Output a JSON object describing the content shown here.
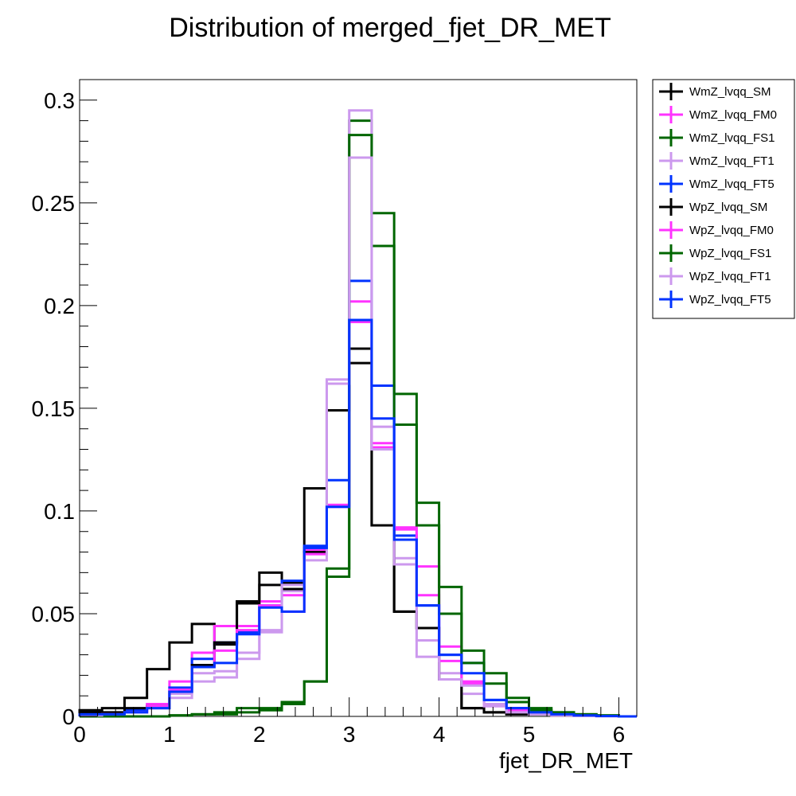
{
  "chart_data": {
    "type": "line",
    "title": "Distribution of merged_fjet_DR_MET",
    "xlabel": "fjet_DR_MET",
    "ylabel": "",
    "xlim": [
      0,
      6.2
    ],
    "ylim": [
      0,
      0.31
    ],
    "x_ticks": [
      0,
      1,
      2,
      3,
      4,
      5,
      6
    ],
    "x_tick_labels": [
      "0",
      "1",
      "2",
      "3",
      "4",
      "5",
      "6"
    ],
    "y_ticks": [
      0,
      0.05,
      0.1,
      0.15,
      0.2,
      0.25,
      0.3
    ],
    "y_tick_labels": [
      "0",
      "0.05",
      "0.1",
      "0.15",
      "0.2",
      "0.25",
      "0.3"
    ],
    "bin_edges": [
      0,
      0.25,
      0.5,
      0.75,
      1.0,
      1.25,
      1.5,
      1.75,
      2.0,
      2.25,
      2.5,
      2.75,
      3.0,
      3.25,
      3.5,
      3.75,
      4.0,
      4.25,
      4.5,
      4.75,
      5.0,
      5.25,
      5.5,
      5.75,
      6.0,
      6.2
    ],
    "legend_position": "top-right, outside plot",
    "series": [
      {
        "name": "WmZ_lvqq_SM",
        "color": "#000000",
        "values": [
          0.003,
          0.004,
          0.009,
          0.023,
          0.036,
          0.045,
          0.035,
          0.056,
          0.07,
          0.065,
          0.111,
          0.149,
          0.179,
          0.093,
          0.051,
          0.043,
          0.018,
          0.004,
          0.002,
          0.001,
          0.001,
          0.0005,
          0.0003,
          0.0002,
          0.0
        ]
      },
      {
        "name": "WmZ_lvqq_FM0",
        "color": "#ff33ff",
        "values": [
          0.001,
          0.001,
          0.002,
          0.006,
          0.017,
          0.031,
          0.044,
          0.044,
          0.056,
          0.059,
          0.081,
          0.103,
          0.202,
          0.133,
          0.091,
          0.073,
          0.034,
          0.017,
          0.006,
          0.004,
          0.002,
          0.001,
          0.0005,
          0.0002,
          0.0
        ]
      },
      {
        "name": "WmZ_lvqq_FS1",
        "color": "#006600",
        "values": [
          0.0,
          0.0,
          0.0,
          0.0,
          0.0005,
          0.001,
          0.002,
          0.004,
          0.004,
          0.007,
          0.017,
          0.072,
          0.29,
          0.245,
          0.157,
          0.104,
          0.063,
          0.032,
          0.021,
          0.009,
          0.004,
          0.002,
          0.001,
          0.0005,
          0.0
        ]
      },
      {
        "name": "WmZ_lvqq_FT1",
        "color": "#cc99ee",
        "values": [
          0.0005,
          0.001,
          0.002,
          0.005,
          0.011,
          0.021,
          0.022,
          0.031,
          0.042,
          0.061,
          0.079,
          0.164,
          0.295,
          0.141,
          0.077,
          0.037,
          0.021,
          0.011,
          0.006,
          0.003,
          0.001,
          0.0005,
          0.0002,
          0.0001,
          0.0
        ]
      },
      {
        "name": "WmZ_lvqq_FT5",
        "color": "#0033ff",
        "values": [
          0.001,
          0.001,
          0.003,
          0.004,
          0.014,
          0.028,
          0.036,
          0.041,
          0.054,
          0.066,
          0.083,
          0.115,
          0.212,
          0.161,
          0.088,
          0.054,
          0.03,
          0.026,
          0.008,
          0.004,
          0.002,
          0.001,
          0.0005,
          0.0002,
          0.0
        ]
      },
      {
        "name": "WpZ_lvqq_SM",
        "color": "#000000",
        "values": [
          0.002,
          0.002,
          0.004,
          0.005,
          0.012,
          0.025,
          0.036,
          0.055,
          0.064,
          0.062,
          0.08,
          0.149,
          0.172,
          0.093,
          0.051,
          0.043,
          0.018,
          0.004,
          0.002,
          0.001,
          0.001,
          0.0005,
          0.0003,
          0.0002,
          0.0
        ]
      },
      {
        "name": "WpZ_lvqq_FM0",
        "color": "#ff33ff",
        "values": [
          0.0005,
          0.001,
          0.002,
          0.005,
          0.013,
          0.024,
          0.032,
          0.042,
          0.054,
          0.051,
          0.079,
          0.102,
          0.192,
          0.131,
          0.092,
          0.059,
          0.027,
          0.016,
          0.005,
          0.003,
          0.002,
          0.001,
          0.0005,
          0.0002,
          0.0
        ]
      },
      {
        "name": "WpZ_lvqq_FS1",
        "color": "#006600",
        "values": [
          0.0,
          0.0,
          0.0,
          0.0,
          0.0005,
          0.001,
          0.001,
          0.002,
          0.003,
          0.006,
          0.017,
          0.068,
          0.283,
          0.229,
          0.142,
          0.093,
          0.05,
          0.026,
          0.016,
          0.007,
          0.003,
          0.002,
          0.001,
          0.0005,
          0.0
        ]
      },
      {
        "name": "WpZ_lvqq_FT1",
        "color": "#cc99ee",
        "values": [
          0.0005,
          0.001,
          0.002,
          0.004,
          0.009,
          0.017,
          0.019,
          0.028,
          0.041,
          0.064,
          0.076,
          0.162,
          0.272,
          0.13,
          0.074,
          0.029,
          0.018,
          0.015,
          0.005,
          0.002,
          0.001,
          0.0005,
          0.0002,
          0.0001,
          0.0
        ]
      },
      {
        "name": "WpZ_lvqq_FT5",
        "color": "#0033ff",
        "values": [
          0.001,
          0.001,
          0.002,
          0.004,
          0.012,
          0.024,
          0.026,
          0.04,
          0.053,
          0.051,
          0.082,
          0.102,
          0.193,
          0.145,
          0.086,
          0.054,
          0.03,
          0.021,
          0.008,
          0.004,
          0.002,
          0.001,
          0.0005,
          0.0002,
          0.0
        ]
      }
    ]
  }
}
